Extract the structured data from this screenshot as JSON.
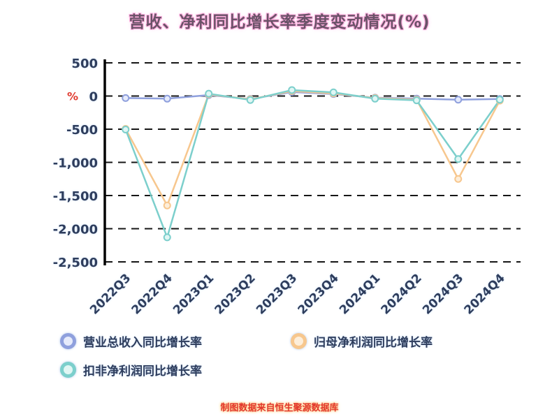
{
  "title": "营收、净利同比增长率季度变动情况(%)",
  "footer": "制图数据来自恒生聚源数据库",
  "chart_data": {
    "type": "line",
    "title": "营收、净利同比增长率季度变动情况(%)",
    "xlabel": "",
    "ylabel": "%",
    "ylim": [
      -2500,
      500
    ],
    "yticks": [
      500,
      0,
      -500,
      -1000,
      -1500,
      -2000,
      -2500
    ],
    "ytick_labels": [
      "500",
      "0",
      "-500",
      "-1,000",
      "-1,500",
      "-2,000",
      "-2,500"
    ],
    "grid": true,
    "legend_position": "bottom",
    "categories": [
      "2022Q3",
      "2022Q4",
      "2023Q1",
      "2023Q2",
      "2023Q3",
      "2023Q4",
      "2024Q1",
      "2024Q2",
      "2024Q3",
      "2024Q4"
    ],
    "series": [
      {
        "name": "营业总收入同比增长率",
        "color": "#8fa0dd",
        "fill": "#e6ebfb",
        "values": [
          -30,
          -40,
          15,
          -45,
          60,
          30,
          -25,
          -40,
          -55,
          -45
        ]
      },
      {
        "name": "归母净利润同比增长率",
        "color": "#f7c78e",
        "fill": "#fdeeda",
        "values": [
          -495,
          -1650,
          25,
          -50,
          75,
          40,
          -30,
          -55,
          -1250,
          -70
        ]
      },
      {
        "name": "扣非净利润同比增长率",
        "color": "#7ccfcc",
        "fill": "#e0f6f4",
        "values": [
          -505,
          -2130,
          35,
          -60,
          90,
          55,
          -40,
          -65,
          -950,
          -55
        ]
      }
    ]
  }
}
